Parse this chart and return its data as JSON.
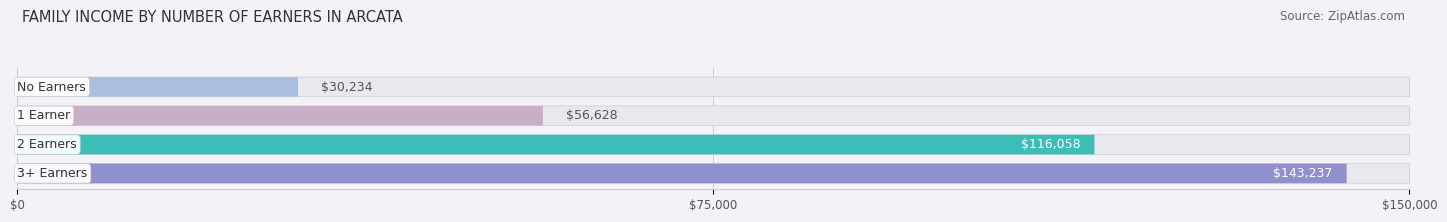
{
  "title": "FAMILY INCOME BY NUMBER OF EARNERS IN ARCATA",
  "source": "Source: ZipAtlas.com",
  "categories": [
    "No Earners",
    "1 Earner",
    "2 Earners",
    "3+ Earners"
  ],
  "values": [
    30234,
    56628,
    116058,
    143237
  ],
  "max_value": 150000,
  "bar_colors": [
    "#aabfdf",
    "#c8afc8",
    "#3dbdb8",
    "#9090cc"
  ],
  "bar_bg_color": "#e8e8ef",
  "value_label_inside": [
    false,
    false,
    true,
    true
  ],
  "value_label_colors_inside": "#ffffff",
  "value_label_colors_outside": "#555555",
  "value_labels": [
    "$30,234",
    "$56,628",
    "$116,058",
    "$143,237"
  ],
  "x_ticks": [
    0,
    75000,
    150000
  ],
  "x_tick_labels": [
    "$0",
    "$75,000",
    "$150,000"
  ],
  "background_color": "#f2f2f7",
  "title_fontsize": 10.5,
  "source_fontsize": 8.5,
  "cat_label_fontsize": 9,
  "value_fontsize": 9
}
